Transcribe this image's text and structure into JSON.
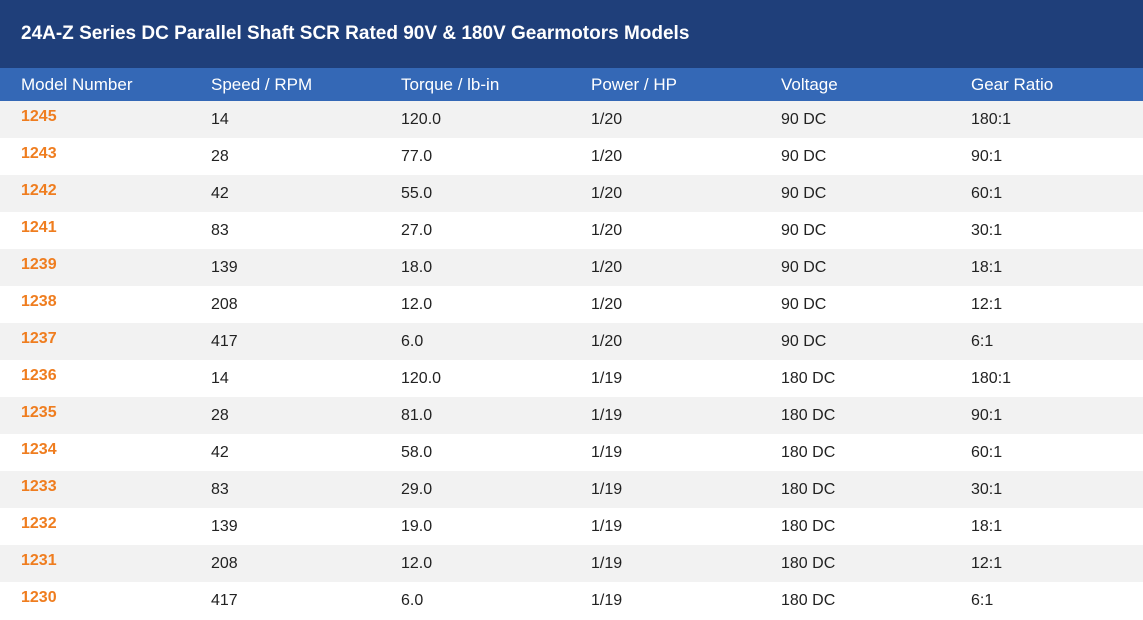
{
  "title": "24A-Z Series DC Parallel Shaft SCR Rated 90V & 180V Gearmotors Models",
  "colors": {
    "title_bg": "#1f3f7a",
    "header_bg": "#3468b6",
    "model_number": "#ef7d1f",
    "stripe": "#f2f2f2"
  },
  "columns": [
    "Model Number",
    "Speed / RPM",
    "Torque / lb-in",
    "Power / HP",
    "Voltage",
    "Gear Ratio"
  ],
  "rows": [
    [
      "1245",
      "14",
      "120.0",
      "1/20",
      "90 DC",
      "180:1"
    ],
    [
      "1243",
      "28",
      "77.0",
      "1/20",
      "90 DC",
      "90:1"
    ],
    [
      "1242",
      "42",
      "55.0",
      "1/20",
      "90 DC",
      "60:1"
    ],
    [
      "1241",
      "83",
      "27.0",
      "1/20",
      "90 DC",
      "30:1"
    ],
    [
      "1239",
      "139",
      "18.0",
      "1/20",
      "90 DC",
      "18:1"
    ],
    [
      "1238",
      "208",
      "12.0",
      "1/20",
      "90 DC",
      "12:1"
    ],
    [
      "1237",
      "417",
      "6.0",
      "1/20",
      "90 DC",
      "6:1"
    ],
    [
      "1236",
      "14",
      "120.0",
      "1/19",
      "180 DC",
      "180:1"
    ],
    [
      "1235",
      "28",
      "81.0",
      "1/19",
      "180 DC",
      "90:1"
    ],
    [
      "1234",
      "42",
      "58.0",
      "1/19",
      "180 DC",
      "60:1"
    ],
    [
      "1233",
      "83",
      "29.0",
      "1/19",
      "180 DC",
      "30:1"
    ],
    [
      "1232",
      "139",
      "19.0",
      "1/19",
      "180 DC",
      "18:1"
    ],
    [
      "1231",
      "208",
      "12.0",
      "1/19",
      "180 DC",
      "12:1"
    ],
    [
      "1230",
      "417",
      "6.0",
      "1/19",
      "180 DC",
      "6:1"
    ]
  ]
}
